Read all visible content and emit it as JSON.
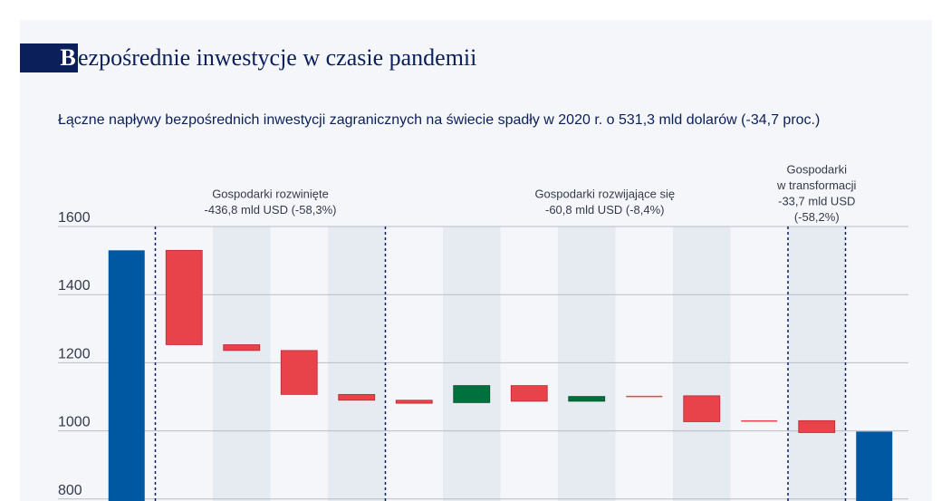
{
  "header": {
    "title_initial": "B",
    "title_rest": "ezpośrednie inwestycje w czasie pandemii",
    "subtitle": "Łączne napływy bezpośrednich inwestycji zagranicznych na świecie spadły w 2020 r. o 531,3 mld dolarów (-34,7 proc.)"
  },
  "colors": {
    "total": "#0058a3",
    "decrease": "#e8424b",
    "increase": "#00703c",
    "band": "#e6eaf1",
    "grid": "#b9bdc6",
    "divider": "#0b1f5a",
    "text": "#333a4a"
  },
  "chart_data": {
    "type": "bar",
    "subtype": "waterfall",
    "title": "Bezpośrednie inwestycje w czasie pandemii",
    "subtitle": "Łączne napływy bezpośrednich inwestycji zagranicznych na świecie spadły w 2020 r. o 531,3 mld dolarów (-34,7 proc.)",
    "yticks": [
      1600,
      1400,
      1200,
      1000,
      800
    ],
    "ylim": [
      780,
      1640
    ],
    "grid": true,
    "groups": [
      {
        "lines": [
          "Gospodarki rozwinięte",
          "-436,8 mld USD (-58,3%)"
        ]
      },
      {
        "lines": [
          "Gospodarki rozwijające się",
          "-60,8 mld USD (-8,4%)"
        ]
      },
      {
        "lines": [
          "Gospodarki",
          "w transformacji",
          "-33,7 mld USD",
          "(-58,2%)"
        ]
      }
    ],
    "bars": [
      {
        "kind": "total",
        "from": 0,
        "to": 1530
      },
      {
        "kind": "decrease",
        "from": 1530,
        "to": 1253
      },
      {
        "kind": "decrease",
        "from": 1253,
        "to": 1236
      },
      {
        "kind": "decrease",
        "from": 1236,
        "to": 1107
      },
      {
        "kind": "decrease",
        "from": 1107,
        "to": 1090
      },
      {
        "kind": "decrease",
        "from": 1090,
        "to": 1081
      },
      {
        "kind": "increase",
        "from": 1083,
        "to": 1133
      },
      {
        "kind": "decrease",
        "from": 1133,
        "to": 1087
      },
      {
        "kind": "increase",
        "from": 1087,
        "to": 1101
      },
      {
        "kind": "decrease",
        "from": 1103,
        "to": 1100
      },
      {
        "kind": "decrease",
        "from": 1103,
        "to": 1027
      },
      {
        "kind": "decrease",
        "from": 1031,
        "to": 1028
      },
      {
        "kind": "decrease",
        "from": 1030,
        "to": 995
      },
      {
        "kind": "total",
        "from": 0,
        "to": 998
      }
    ]
  }
}
